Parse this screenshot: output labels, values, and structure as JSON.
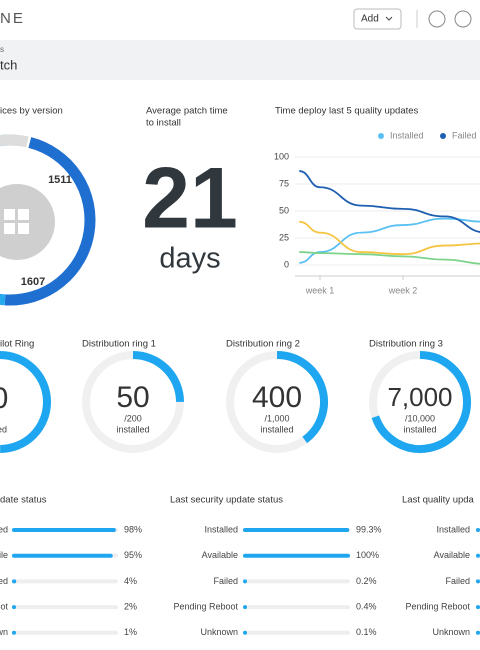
{
  "header": {
    "logo": "NE",
    "add_button": "Add",
    "breadcrumb": "s",
    "page_title": "tch"
  },
  "devices": {
    "title": "ices by version",
    "values": [
      1511,
      1607
    ],
    "colors": [
      "#1f6fd1",
      "#27a9ef"
    ]
  },
  "patch_time": {
    "title": [
      "Average patch time",
      "to install"
    ],
    "value": "21",
    "unit": "days"
  },
  "chart_data": {
    "type": "line",
    "title": "Time deploy last 5 quality updates",
    "x": [
      0.75,
      1,
      1.5,
      2,
      2.5,
      3
    ],
    "xlim": [
      0.7,
      3
    ],
    "xticks": [
      {
        "value": 1,
        "label": "week 1"
      },
      {
        "value": 2,
        "label": "week 2"
      },
      {
        "value": 3,
        "label": "w"
      }
    ],
    "ylim": [
      0,
      100
    ],
    "yticks": [
      100,
      75,
      50,
      25,
      0
    ],
    "series": [
      {
        "name": "Installed",
        "color": "#5bc0f2",
        "values": [
          2,
          12,
          30,
          37,
          43,
          40
        ]
      },
      {
        "name": "Failed",
        "color": "#1f5fb0",
        "values": [
          87,
          72,
          55,
          52,
          45,
          30
        ]
      },
      {
        "color": "#f5c542",
        "values": [
          40,
          30,
          12,
          10,
          18,
          20
        ]
      },
      {
        "color": "#7dd38b",
        "values": [
          12,
          11,
          10,
          8,
          5,
          1
        ]
      }
    ]
  },
  "rings": [
    {
      "title": "ilot Ring",
      "value_label": "0",
      "sub": "lled"
    },
    {
      "title": "Distribution ring 1",
      "value": 50,
      "total": 200,
      "value_label": "50",
      "total_label": "/200",
      "sub": "installed"
    },
    {
      "title": "Distribution ring 2",
      "value": 400,
      "total": 1000,
      "value_label": "400",
      "total_label": "/1,000",
      "sub": "installed"
    },
    {
      "title": "Distribution ring 3",
      "value": 7000,
      "total": 10000,
      "value_label": "7,000",
      "total_label": "/10,000",
      "sub": "installed"
    }
  ],
  "status_lists": [
    {
      "title": "date status",
      "labels": [
        "ed",
        "ile",
        "ed",
        "oot",
        "wn"
      ],
      "values": [
        98,
        95,
        4,
        2,
        1
      ],
      "value_labels": [
        "98%",
        "95%",
        "4%",
        "2%",
        "1%"
      ]
    },
    {
      "title": "Last security update status",
      "labels": [
        "Installed",
        "Available",
        "Failed",
        "Pending Reboot",
        "Unknown"
      ],
      "values": [
        99.3,
        100,
        0.2,
        0.4,
        0.1
      ],
      "value_labels": [
        "99.3%",
        "100%",
        "0.2%",
        "0.4%",
        "0.1%"
      ]
    },
    {
      "title": "Last quality upda",
      "labels": [
        "Installed",
        "Available",
        "Failed",
        "Pending Reboot",
        "Unknown"
      ]
    }
  ]
}
